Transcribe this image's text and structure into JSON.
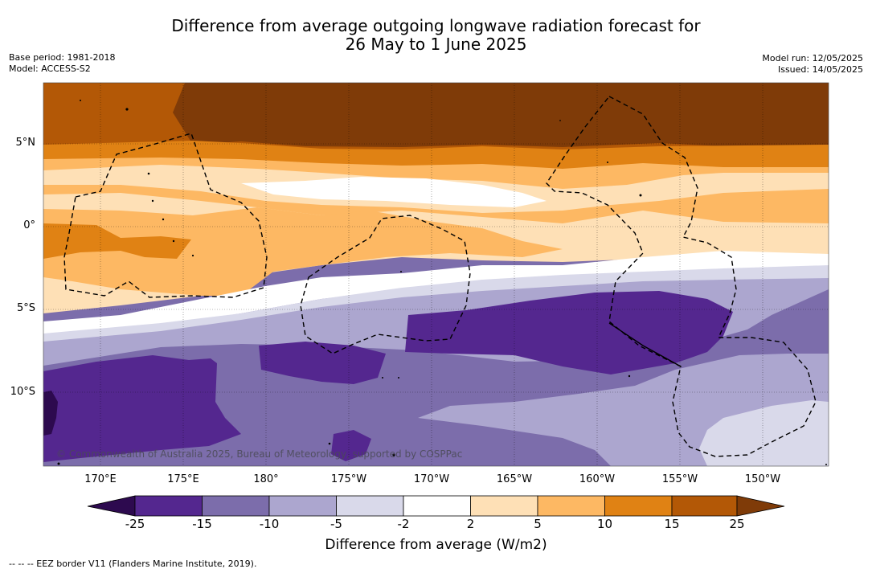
{
  "title": {
    "line1": "Difference from average outgoing longwave radiation forecast for",
    "line2": "26 May to 1 June 2025"
  },
  "meta": {
    "base_period": "Base period: 1981-2018",
    "model": "Model: ACCESS-S2",
    "model_run": "Model run: 12/05/2025",
    "issued": "Issued: 14/05/2025"
  },
  "map": {
    "lon_ticks": [
      "170°E",
      "175°E",
      "180°",
      "175°W",
      "170°W",
      "165°W",
      "160°W",
      "155°W",
      "150°W"
    ],
    "lat_ticks": [
      "5°N",
      "0°",
      "5°S",
      "10°S"
    ],
    "copyright": "© Commonwealth of Australia 2025, Bureau of Meteorology, supported by COSPPac",
    "eez_style": "dashed"
  },
  "colorbar": {
    "labels": [
      "-25",
      "-15",
      "-10",
      "-5",
      "-2",
      "2",
      "5",
      "10",
      "15",
      "25"
    ],
    "colors": [
      "#2d0a4f",
      "#54278f",
      "#7c6dab",
      "#aca6cf",
      "#d9d9ea",
      "#ffffff",
      "#fee0b6",
      "#fdb863",
      "#e08214",
      "#b35806",
      "#7f3b08"
    ],
    "title": "Difference from average (W/m2)"
  },
  "footnote": "--  --  -- EEZ border V11 (Flanders Marine Institute, 2019)."
}
